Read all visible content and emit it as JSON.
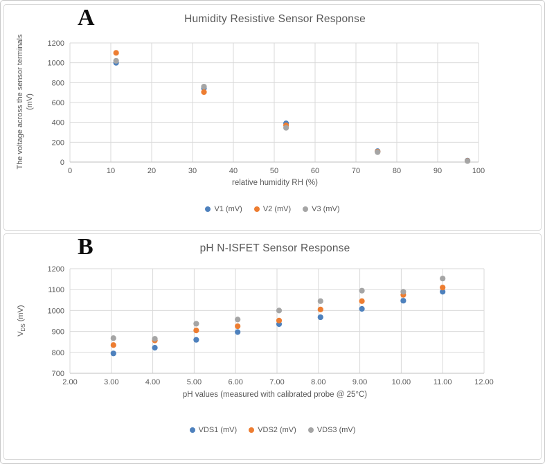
{
  "colors": {
    "series_blue": "#4E81BD",
    "series_orange": "#ED7D31",
    "series_gray": "#A5A5A5",
    "text_gray": "#595959",
    "gridline": "#d9d9d9",
    "axis_line": "#bfbfbf"
  },
  "chart_data": [
    {
      "type": "scatter",
      "panel_label": "A",
      "title": "Humidity Resistive Sensor Response",
      "xlabel": "relative humidity RH (%)",
      "ylabel_line1": "The voltage across the sensor terminals",
      "ylabel_line2": "(mV)",
      "xlim": [
        0,
        100
      ],
      "xtick_step": 10,
      "xtick_decimals": 0,
      "ylim": [
        0,
        1200
      ],
      "ytick_step": 200,
      "grid": true,
      "legend_position": "bottom",
      "x": [
        11.3,
        32.8,
        52.9,
        75.3,
        97.3
      ],
      "series": [
        {
          "name": "V1 (mV)",
          "color_key": "series_blue",
          "values": [
            1000,
            745,
            390,
            110,
            15
          ]
        },
        {
          "name": "V2 (mV)",
          "color_key": "series_orange",
          "values": [
            1100,
            705,
            370,
            105,
            12
          ]
        },
        {
          "name": "V3 (mV)",
          "color_key": "series_gray",
          "values": [
            1020,
            760,
            345,
            100,
            10
          ]
        }
      ]
    },
    {
      "type": "scatter",
      "panel_label": "B",
      "title": "pH N-ISFET Sensor Response",
      "xlabel": "pH values (measured with calibrated probe @ 25°C)",
      "ylabel_prefix": "V",
      "ylabel_subscript": "DS",
      "ylabel_suffix": " (mV)",
      "xlim": [
        2,
        12
      ],
      "xtick_step": 1,
      "xtick_decimals": 2,
      "ylim": [
        700,
        1200
      ],
      "ytick_step": 100,
      "grid": true,
      "legend_position": "bottom",
      "x": [
        3.05,
        4.05,
        5.05,
        6.05,
        7.05,
        8.05,
        9.05,
        10.05,
        11.0
      ],
      "series": [
        {
          "name": "VDS1 (mV)",
          "color_key": "series_blue",
          "values": [
            795,
            822,
            860,
            897,
            935,
            968,
            1008,
            1047,
            1090
          ]
        },
        {
          "name": "VDS2 (mV)",
          "color_key": "series_orange",
          "values": [
            835,
            857,
            905,
            925,
            952,
            1005,
            1045,
            1075,
            1110
          ]
        },
        {
          "name": "VDS3 (mV)",
          "color_key": "series_gray",
          "values": [
            868,
            865,
            937,
            957,
            1000,
            1045,
            1095,
            1090,
            1153
          ]
        }
      ]
    }
  ]
}
